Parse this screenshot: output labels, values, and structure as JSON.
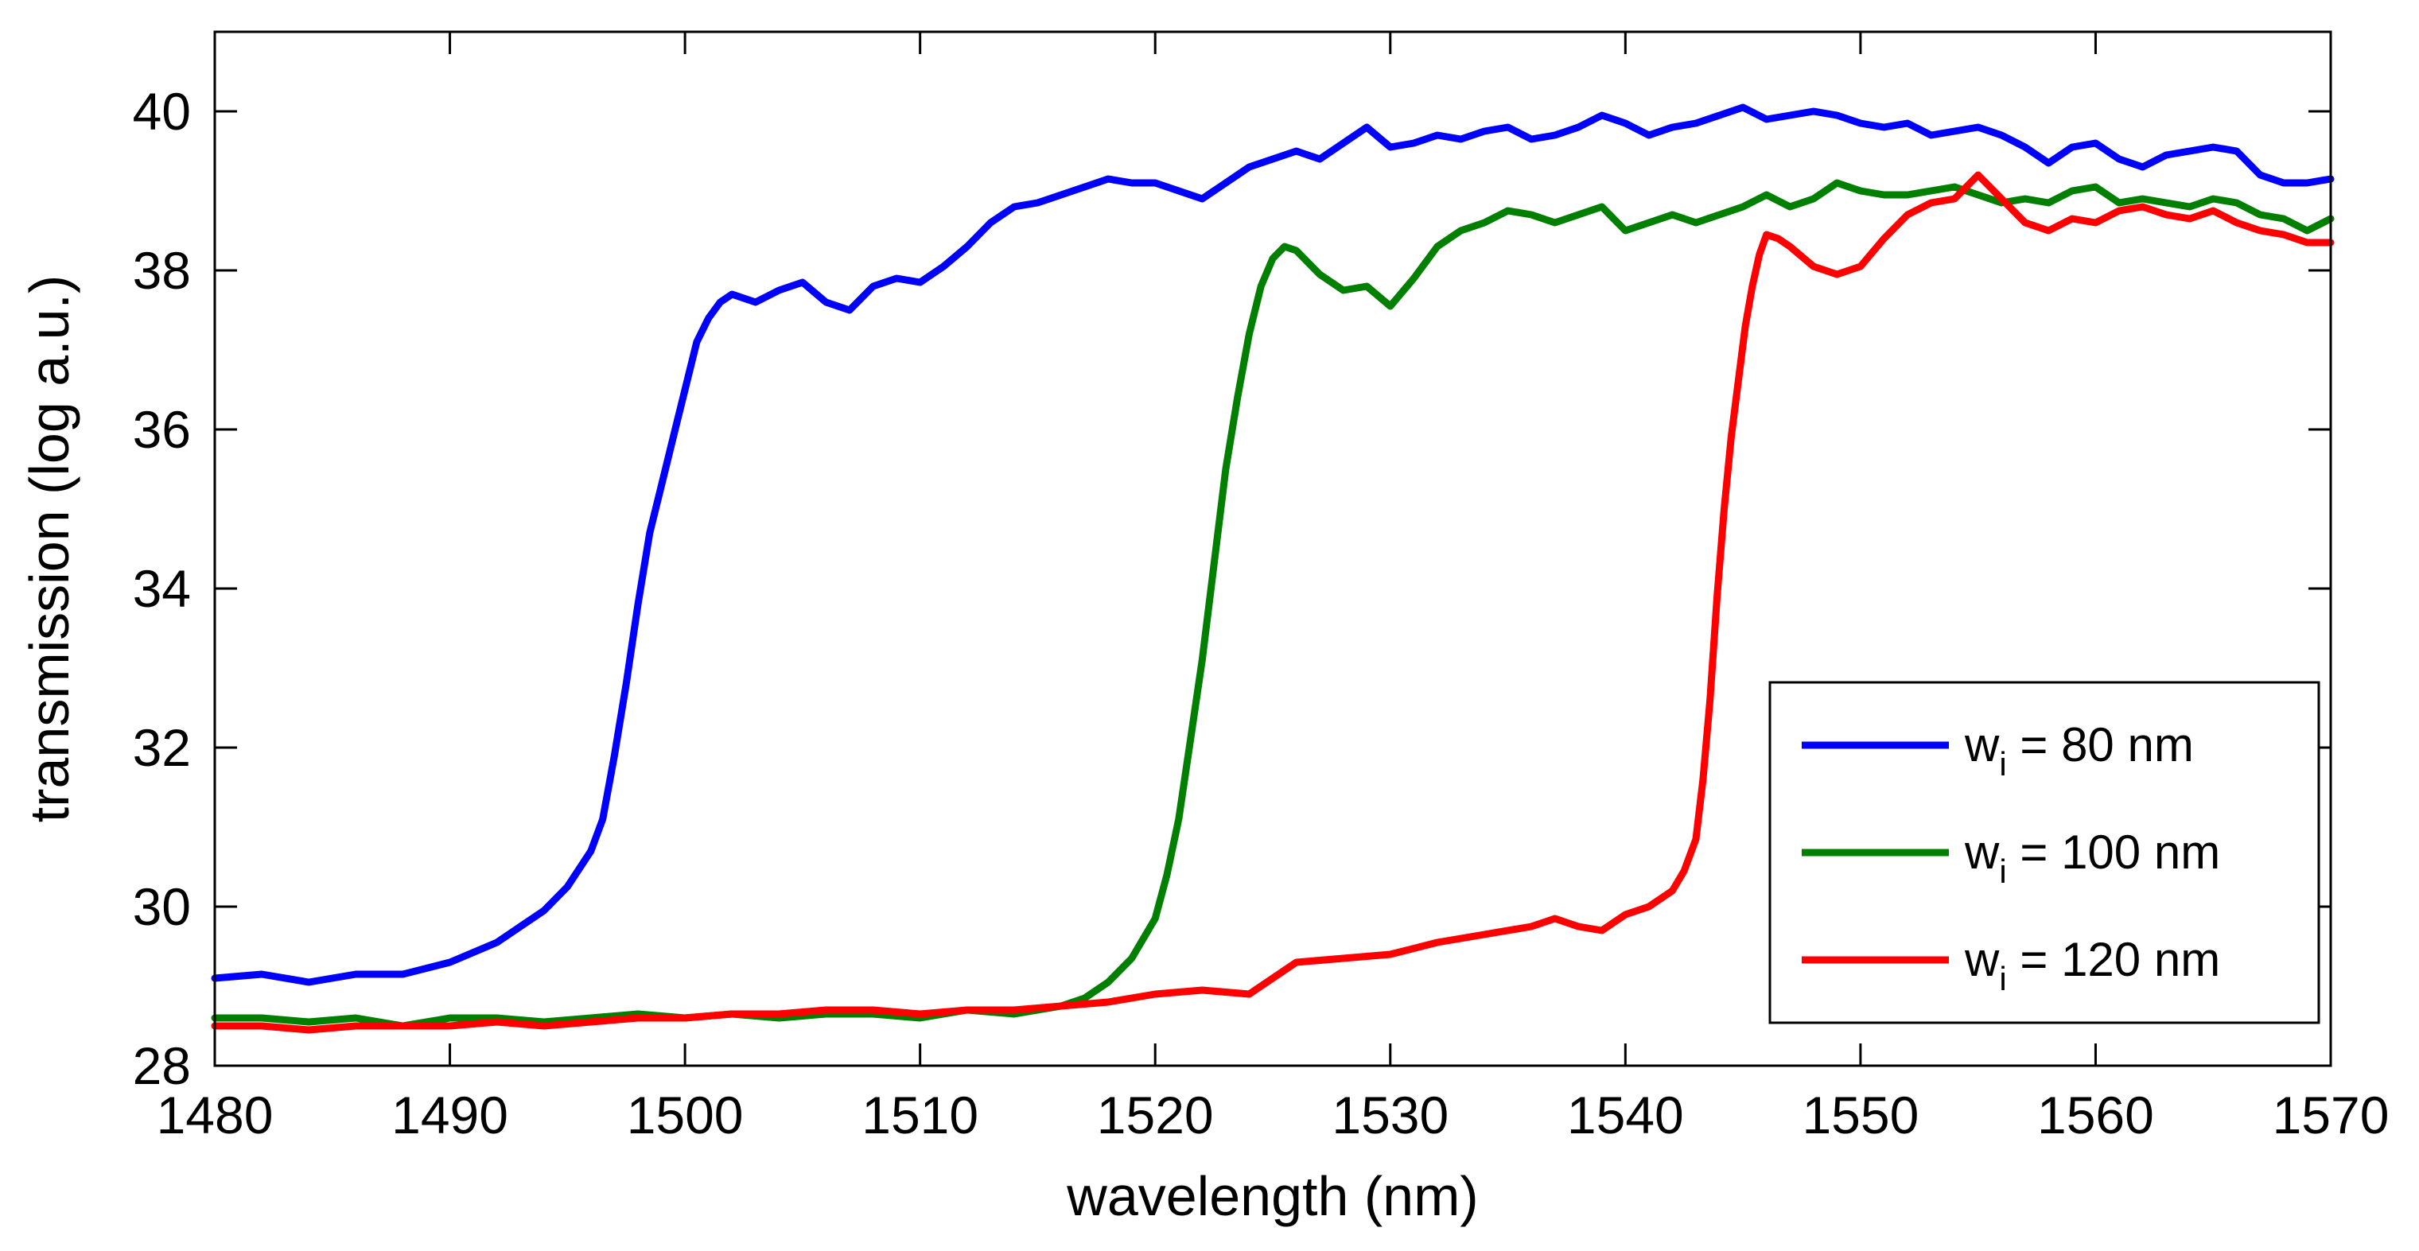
{
  "chart_data": {
    "type": "line",
    "title": "",
    "xlabel": "wavelength (nm)",
    "ylabel": "transmission (log a.u.)",
    "xlim": [
      1480,
      1570
    ],
    "ylim": [
      28,
      41
    ],
    "xticks": [
      1480,
      1490,
      1500,
      1510,
      1520,
      1530,
      1540,
      1550,
      1560,
      1570
    ],
    "yticks": [
      28,
      30,
      32,
      34,
      36,
      38,
      40
    ],
    "xtick_labels": [
      "1480",
      "1490",
      "1500",
      "1510",
      "1520",
      "1530",
      "1540",
      "1550",
      "1560",
      "1570"
    ],
    "ytick_labels": [
      "28",
      "30",
      "32",
      "34",
      "36",
      "38",
      "40"
    ],
    "grid": false,
    "legend_position": "bottom-right",
    "series": [
      {
        "name": "w_i = 80 nm",
        "legend_main": "w",
        "legend_sub": "i",
        "legend_rest": " = 80 nm",
        "color": "#0000ff",
        "x": [
          1480,
          1482,
          1484,
          1486,
          1488,
          1490,
          1492,
          1493,
          1494,
          1495,
          1496,
          1496.5,
          1497,
          1497.5,
          1498,
          1498.5,
          1499,
          1499.5,
          1500,
          1500.5,
          1501,
          1501.5,
          1502,
          1503,
          1504,
          1505,
          1506,
          1507,
          1508,
          1509,
          1510,
          1511,
          1512,
          1513,
          1514,
          1515,
          1516,
          1517,
          1518,
          1519,
          1520,
          1521,
          1522,
          1523,
          1524,
          1525,
          1526,
          1527,
          1528,
          1529,
          1530,
          1531,
          1532,
          1533,
          1534,
          1535,
          1536,
          1537,
          1538,
          1539,
          1540,
          1541,
          1542,
          1543,
          1544,
          1545,
          1546,
          1547,
          1548,
          1549,
          1550,
          1551,
          1552,
          1553,
          1554,
          1555,
          1556,
          1557,
          1558,
          1559,
          1560,
          1561,
          1562,
          1563,
          1564,
          1565,
          1566,
          1567,
          1568,
          1569,
          1570
        ],
        "values": [
          29.1,
          29.15,
          29.05,
          29.15,
          29.15,
          29.3,
          29.55,
          29.75,
          29.95,
          30.25,
          30.7,
          31.1,
          31.9,
          32.8,
          33.8,
          34.7,
          35.3,
          35.9,
          36.5,
          37.1,
          37.4,
          37.6,
          37.7,
          37.6,
          37.75,
          37.85,
          37.6,
          37.5,
          37.8,
          37.9,
          37.85,
          38.05,
          38.3,
          38.6,
          38.8,
          38.85,
          38.95,
          39.05,
          39.15,
          39.1,
          39.1,
          39.0,
          38.9,
          39.1,
          39.3,
          39.4,
          39.5,
          39.4,
          39.6,
          39.8,
          39.55,
          39.6,
          39.7,
          39.65,
          39.75,
          39.8,
          39.65,
          39.7,
          39.8,
          39.95,
          39.85,
          39.7,
          39.8,
          39.85,
          39.95,
          40.05,
          39.9,
          39.95,
          40.0,
          39.95,
          39.85,
          39.8,
          39.85,
          39.7,
          39.75,
          39.8,
          39.7,
          39.55,
          39.35,
          39.55,
          39.6,
          39.4,
          39.3,
          39.45,
          39.5,
          39.55,
          39.5,
          39.2,
          39.1,
          39.1,
          39.15
        ]
      },
      {
        "name": "w_i = 100 nm",
        "legend_main": "w",
        "legend_sub": "i",
        "legend_rest": " = 100 nm",
        "color": "#007f00",
        "x": [
          1480,
          1482,
          1484,
          1486,
          1488,
          1490,
          1492,
          1494,
          1496,
          1498,
          1500,
          1502,
          1504,
          1506,
          1508,
          1510,
          1512,
          1514,
          1516,
          1517,
          1518,
          1519,
          1520,
          1520.5,
          1521,
          1521.5,
          1522,
          1522.5,
          1523,
          1523.5,
          1524,
          1524.5,
          1525,
          1525.5,
          1526,
          1527,
          1528,
          1529,
          1530,
          1531,
          1532,
          1533,
          1534,
          1535,
          1536,
          1537,
          1538,
          1539,
          1540,
          1541,
          1542,
          1543,
          1544,
          1545,
          1546,
          1547,
          1548,
          1549,
          1550,
          1551,
          1552,
          1553,
          1554,
          1555,
          1556,
          1557,
          1558,
          1559,
          1560,
          1561,
          1562,
          1563,
          1564,
          1565,
          1566,
          1567,
          1568,
          1569,
          1570
        ],
        "values": [
          28.6,
          28.6,
          28.55,
          28.6,
          28.5,
          28.6,
          28.6,
          28.55,
          28.6,
          28.65,
          28.6,
          28.65,
          28.6,
          28.65,
          28.65,
          28.6,
          28.7,
          28.65,
          28.75,
          28.85,
          29.05,
          29.35,
          29.85,
          30.4,
          31.1,
          32.1,
          33.1,
          34.3,
          35.5,
          36.4,
          37.2,
          37.8,
          38.15,
          38.3,
          38.25,
          37.95,
          37.75,
          37.8,
          37.55,
          37.9,
          38.3,
          38.5,
          38.6,
          38.75,
          38.7,
          38.6,
          38.7,
          38.8,
          38.5,
          38.6,
          38.7,
          38.6,
          38.7,
          38.8,
          38.95,
          38.8,
          38.9,
          39.1,
          39.0,
          38.95,
          38.95,
          39.0,
          39.05,
          38.95,
          38.85,
          38.9,
          38.85,
          39.0,
          39.05,
          38.85,
          38.9,
          38.85,
          38.8,
          38.9,
          38.85,
          38.7,
          38.65,
          38.5,
          38.65
        ]
      },
      {
        "name": "w_i = 120 nm",
        "legend_main": "w",
        "legend_sub": "i",
        "legend_rest": " = 120 nm",
        "color": "#ff0000",
        "x": [
          1480,
          1482,
          1484,
          1486,
          1488,
          1490,
          1492,
          1494,
          1496,
          1498,
          1500,
          1502,
          1504,
          1506,
          1508,
          1510,
          1512,
          1514,
          1516,
          1518,
          1520,
          1522,
          1524,
          1525,
          1526,
          1528,
          1530,
          1532,
          1534,
          1536,
          1537,
          1538,
          1539,
          1540,
          1541,
          1542,
          1542.5,
          1543,
          1543.3,
          1543.6,
          1543.9,
          1544.2,
          1544.5,
          1544.8,
          1545.1,
          1545.4,
          1545.7,
          1546,
          1546.5,
          1547,
          1548,
          1549,
          1550,
          1551,
          1552,
          1553,
          1554,
          1555,
          1556,
          1557,
          1558,
          1559,
          1560,
          1561,
          1562,
          1563,
          1564,
          1565,
          1566,
          1567,
          1568,
          1569,
          1570
        ],
        "values": [
          28.5,
          28.5,
          28.45,
          28.5,
          28.5,
          28.5,
          28.55,
          28.5,
          28.55,
          28.6,
          28.6,
          28.65,
          28.65,
          28.7,
          28.7,
          28.65,
          28.7,
          28.7,
          28.75,
          28.8,
          28.9,
          28.95,
          28.9,
          29.1,
          29.3,
          29.35,
          29.4,
          29.55,
          29.65,
          29.75,
          29.85,
          29.75,
          29.7,
          29.9,
          30.0,
          30.2,
          30.45,
          30.85,
          31.6,
          32.6,
          33.9,
          35.0,
          35.9,
          36.6,
          37.3,
          37.8,
          38.2,
          38.45,
          38.4,
          38.3,
          38.05,
          37.95,
          38.05,
          38.4,
          38.7,
          38.85,
          38.9,
          39.2,
          38.9,
          38.6,
          38.5,
          38.65,
          38.6,
          38.75,
          38.8,
          38.7,
          38.65,
          38.75,
          38.6,
          38.5,
          38.45,
          38.35,
          38.35
        ]
      }
    ]
  }
}
